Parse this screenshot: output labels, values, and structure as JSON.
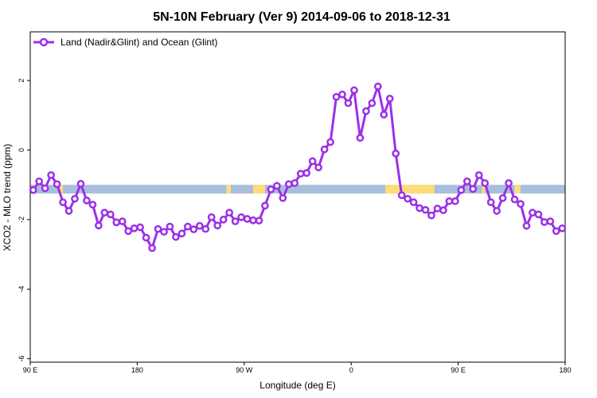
{
  "chart_data": {
    "type": "line",
    "title": "5N-10N February (Ver 9)   2014-09-06 to 2018-12-31",
    "xlabel": "Longitude (deg E)",
    "ylabel": "XCO2 - MLO trend (ppm)",
    "xlim": [
      90,
      450
    ],
    "ylim": [
      -6.1,
      3.4
    ],
    "x_ticks": [
      90,
      162,
      234,
      306,
      378,
      450
    ],
    "x_tick_labels": [
      "90 E",
      "180",
      "90 W",
      "0",
      "90 E",
      "180"
    ],
    "y_ticks": [
      2,
      0,
      -2,
      -4,
      -6
    ],
    "y_tick_labels": [
      "2",
      "0",
      "-2",
      "-4",
      "-6"
    ],
    "legend_position": "top-left",
    "series_color": "#9b30e8",
    "land_band": {
      "y_range": [
        -1.25,
        -1.0
      ],
      "ocean_color": "#a7bfdc",
      "land_color": "#ffdc7a"
    },
    "series": [
      {
        "name": "Land (Nadir&Glint) and Ocean (Glint)",
        "x": [
          92,
          96,
          100,
          104,
          108,
          112,
          116,
          120,
          124,
          128,
          132,
          136,
          140,
          144,
          148,
          152,
          156,
          160,
          164,
          168,
          172,
          176,
          180,
          184,
          188,
          192,
          196,
          200,
          204,
          208,
          212,
          216,
          220,
          224,
          228,
          232,
          236,
          240,
          244,
          248,
          252,
          256,
          260,
          264,
          268,
          272,
          276,
          280,
          284,
          288,
          292,
          296,
          300,
          304,
          308,
          312,
          316,
          320,
          324,
          328,
          332,
          336,
          340,
          344,
          348,
          352,
          356,
          360,
          364,
          368,
          372,
          376,
          380,
          384,
          388,
          392,
          396,
          400,
          404,
          408,
          412,
          416,
          420,
          424,
          428,
          432,
          436,
          440,
          444,
          448
        ],
        "y": [
          -1.15,
          -0.9,
          -1.1,
          -0.72,
          -0.98,
          -1.5,
          -1.75,
          -1.4,
          -0.97,
          -1.45,
          -1.57,
          -2.17,
          -1.8,
          -1.85,
          -2.08,
          -2.05,
          -2.33,
          -2.25,
          -2.22,
          -2.52,
          -2.82,
          -2.27,
          -2.35,
          -2.2,
          -2.5,
          -2.4,
          -2.2,
          -2.28,
          -2.18,
          -2.27,
          -1.93,
          -2.17,
          -2.0,
          -1.8,
          -2.05,
          -1.93,
          -1.98,
          -2.02,
          -2.03,
          -1.6,
          -1.13,
          -1.03,
          -1.38,
          -0.98,
          -0.95,
          -0.68,
          -0.66,
          -0.32,
          -0.5,
          0.02,
          0.23,
          1.53,
          1.6,
          1.35,
          1.72,
          0.35,
          1.12,
          1.35,
          1.83,
          1.02,
          1.48,
          -0.1,
          -1.3,
          -1.4,
          -1.5,
          -1.67,
          -1.72,
          -1.88,
          -1.68,
          -1.73,
          -1.47,
          -1.47,
          -1.15,
          -0.9,
          -1.12,
          -0.72,
          -0.95,
          -1.5,
          -1.75,
          -1.38,
          -0.95,
          -1.42,
          -1.55,
          -2.18,
          -1.8,
          -1.85,
          -2.07,
          -2.05,
          -2.33,
          -2.25
        ]
      }
    ]
  }
}
